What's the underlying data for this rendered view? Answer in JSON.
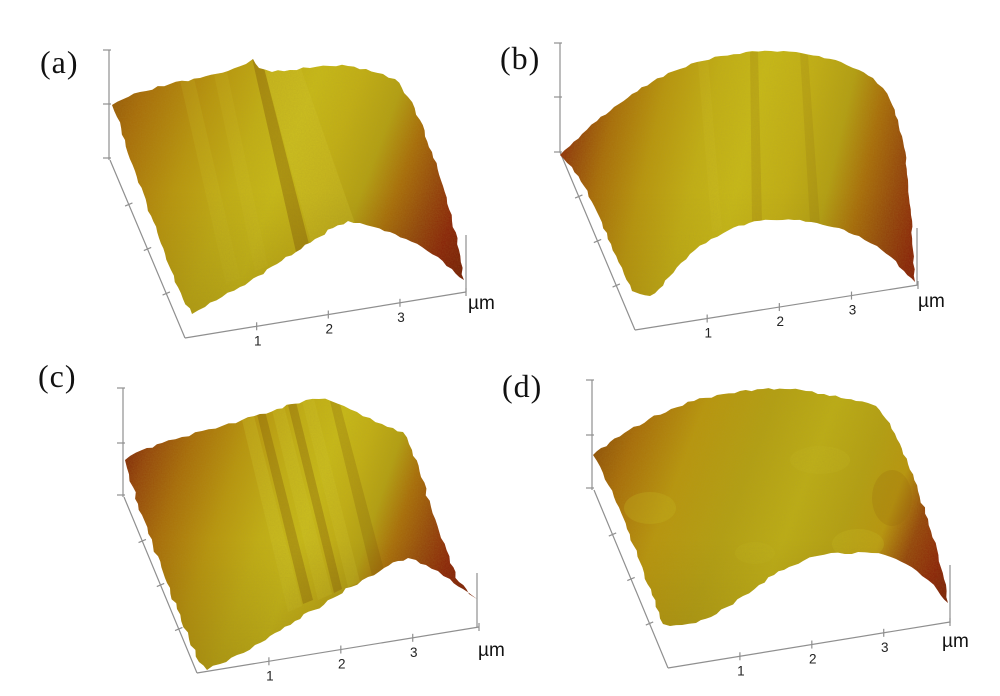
{
  "figure": {
    "background": "#ffffff",
    "panels": [
      {
        "id": "a",
        "label": "(a)",
        "x_tick_labels": [
          "1",
          "2",
          "3"
        ],
        "axis_unit": "µm"
      },
      {
        "id": "b",
        "label": "(b)",
        "x_tick_labels": [
          "1",
          "2",
          "3"
        ],
        "axis_unit": "µm"
      },
      {
        "id": "c",
        "label": "(c)",
        "x_tick_labels": [
          "1",
          "2",
          "3"
        ],
        "axis_unit": "µm"
      },
      {
        "id": "d",
        "label": "(d)",
        "x_tick_labels": [
          "1",
          "2",
          "3"
        ],
        "axis_unit": "µm"
      }
    ],
    "palette": {
      "deep_red": "#7a1c05",
      "dark_red": "#8c2008",
      "red_brown": "#94430a",
      "brown_orange": "#8a4a06",
      "orange": "#a86c08",
      "light_orange": "#b8960c",
      "olive": "#b3a011",
      "olive_bright": "#bcae14",
      "yellow": "#c2b013",
      "bright_yellow": "#c8bb16",
      "highlight": "#d4c92e",
      "groove": "#7d5206",
      "axis": "#8f8f8f",
      "tick_text": "#222222",
      "unit_text": "#111111"
    }
  },
  "chart_data": [
    {
      "type": "3d-surface",
      "panel": "(a)",
      "x_axis": {
        "unit": "µm",
        "ticks": [
          1,
          2,
          3
        ]
      },
      "z_axis": {
        "ticks": 3,
        "labels": "none"
      },
      "appearance": "ridged amber AFM surface with central groove, dark red right flank"
    },
    {
      "type": "3d-surface",
      "panel": "(b)",
      "x_axis": {
        "unit": "µm",
        "ticks": [
          1,
          2,
          3
        ]
      },
      "z_axis": {
        "ticks": 3,
        "labels": "none"
      },
      "appearance": "smooth convex yellow dome with dark red edges"
    },
    {
      "type": "3d-surface",
      "panel": "(c)",
      "x_axis": {
        "unit": "µm",
        "ticks": [
          1,
          2,
          3
        ]
      },
      "z_axis": {
        "ticks": 3,
        "labels": "none"
      },
      "appearance": "striated surface with parallel ridges, wide dark red flanks"
    },
    {
      "type": "3d-surface",
      "panel": "(d)",
      "x_axis": {
        "unit": "µm",
        "ticks": [
          1,
          2,
          3
        ]
      },
      "z_axis": {
        "ticks": 3,
        "labels": "none"
      },
      "appearance": "flat granular olive surface with shallow round bumps"
    }
  ]
}
